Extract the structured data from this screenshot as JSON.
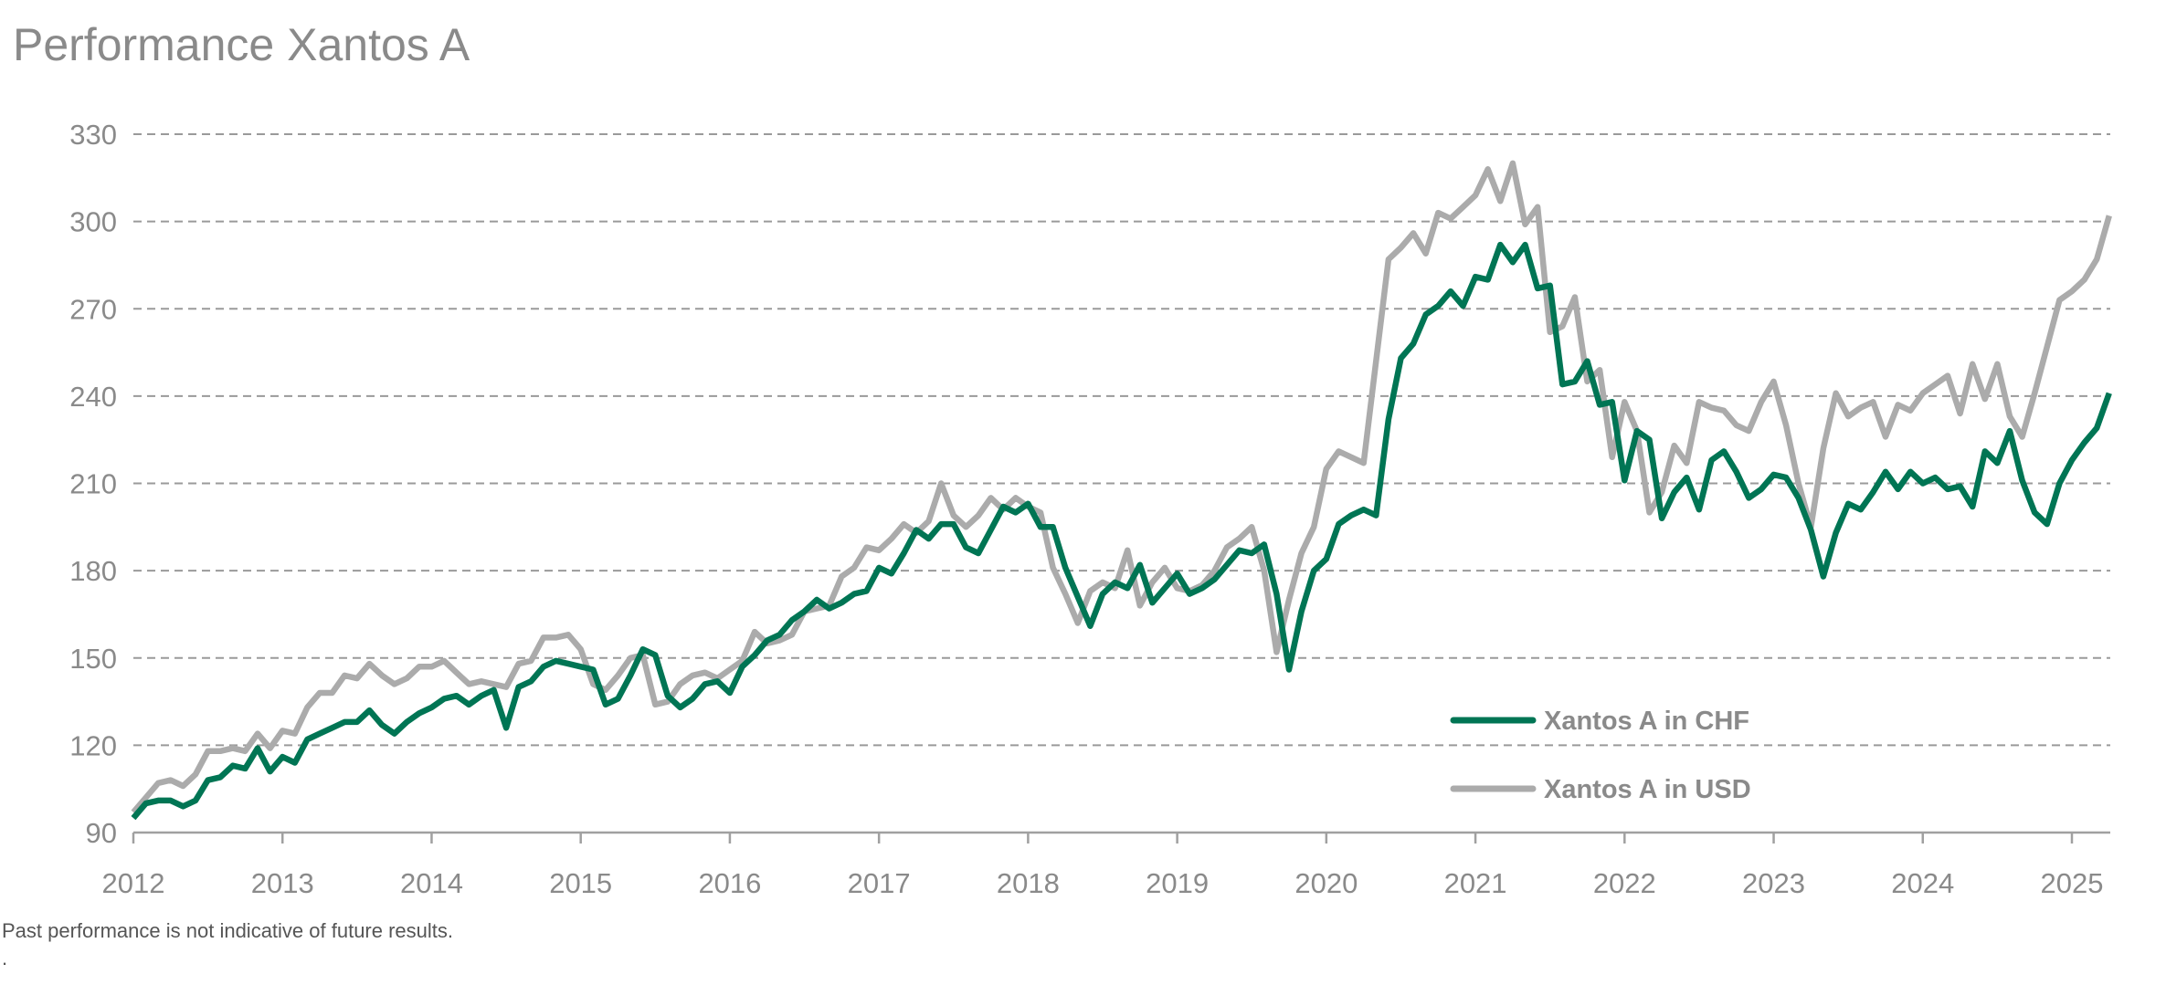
{
  "chart_data": {
    "type": "line",
    "title": "Performance Xantos A",
    "xlabel": "",
    "ylabel": "",
    "ylim": [
      90,
      330
    ],
    "yticks": [
      90,
      120,
      150,
      180,
      210,
      240,
      270,
      300,
      330
    ],
    "xlim": [
      2012,
      2025.33
    ],
    "xticks": [
      2012,
      2013,
      2014,
      2015,
      2016,
      2017,
      2018,
      2019,
      2020,
      2021,
      2022,
      2023,
      2024,
      2025
    ],
    "x_start": 2012,
    "x_step_months": 1,
    "grid": "horizontal dashed",
    "legend_position": "bottom-right",
    "series": [
      {
        "name": "Xantos A in CHF",
        "color": "#007554",
        "values": [
          95,
          100,
          101,
          101,
          99,
          101,
          108,
          109,
          113,
          112,
          119,
          111,
          116,
          114,
          122,
          124,
          126,
          128,
          128,
          132,
          127,
          124,
          128,
          131,
          133,
          136,
          137,
          134,
          137,
          139,
          126,
          140,
          142,
          147,
          149,
          148,
          147,
          146,
          134,
          136,
          144,
          153,
          151,
          137,
          133,
          136,
          141,
          142,
          138,
          147,
          151,
          156,
          158,
          163,
          166,
          170,
          167,
          169,
          172,
          173,
          181,
          179,
          186,
          194,
          191,
          196,
          196,
          188,
          186,
          194,
          202,
          200,
          203,
          195,
          195,
          181,
          171,
          161,
          172,
          176,
          174,
          182,
          169,
          174,
          179,
          172,
          174,
          177,
          182,
          187,
          186,
          189,
          172,
          146,
          166,
          180,
          184,
          196,
          199,
          201,
          199,
          232,
          253,
          258,
          268,
          271,
          276,
          271,
          281,
          280,
          292,
          286,
          292,
          277,
          278,
          244,
          245,
          252,
          237,
          238,
          211,
          228,
          225,
          198,
          207,
          212,
          201,
          218,
          221,
          214,
          205,
          208,
          213,
          212,
          205,
          194,
          178,
          193,
          203,
          201,
          207,
          214,
          208,
          214,
          210,
          212,
          208,
          209,
          202,
          221,
          217,
          228,
          211,
          200,
          196,
          210,
          218,
          224,
          229,
          241
        ]
      },
      {
        "name": "Xantos A in USD",
        "color": "#ababab",
        "values": [
          97,
          102,
          107,
          108,
          106,
          110,
          118,
          118,
          119,
          118,
          124,
          119,
          125,
          124,
          133,
          138,
          138,
          144,
          143,
          148,
          144,
          141,
          143,
          147,
          147,
          149,
          145,
          141,
          142,
          141,
          140,
          148,
          149,
          157,
          157,
          158,
          153,
          141,
          139,
          144,
          150,
          151,
          134,
          135,
          141,
          144,
          145,
          143,
          146,
          149,
          159,
          155,
          156,
          158,
          166,
          167,
          168,
          178,
          181,
          188,
          187,
          191,
          196,
          193,
          197,
          210,
          199,
          195,
          199,
          205,
          201,
          205,
          202,
          200,
          181,
          172,
          162,
          173,
          176,
          174,
          187,
          168,
          176,
          181,
          174,
          173,
          175,
          180,
          188,
          191,
          195,
          180,
          152,
          170,
          186,
          195,
          215,
          221,
          219,
          217,
          252,
          287,
          291,
          296,
          289,
          303,
          301,
          305,
          309,
          318,
          307,
          320,
          299,
          305,
          262,
          264,
          274,
          245,
          249,
          219,
          238,
          228,
          200,
          207,
          223,
          217,
          238,
          236,
          235,
          230,
          228,
          238,
          245,
          230,
          210,
          195,
          222,
          241,
          233,
          236,
          238,
          226,
          237,
          235,
          241,
          244,
          247,
          234,
          251,
          239,
          251,
          233,
          226,
          241,
          257,
          273,
          276,
          280,
          287,
          302
        ]
      }
    ]
  },
  "footnote": "Past performance is not indicative of future results.",
  "footnote_mark": "."
}
